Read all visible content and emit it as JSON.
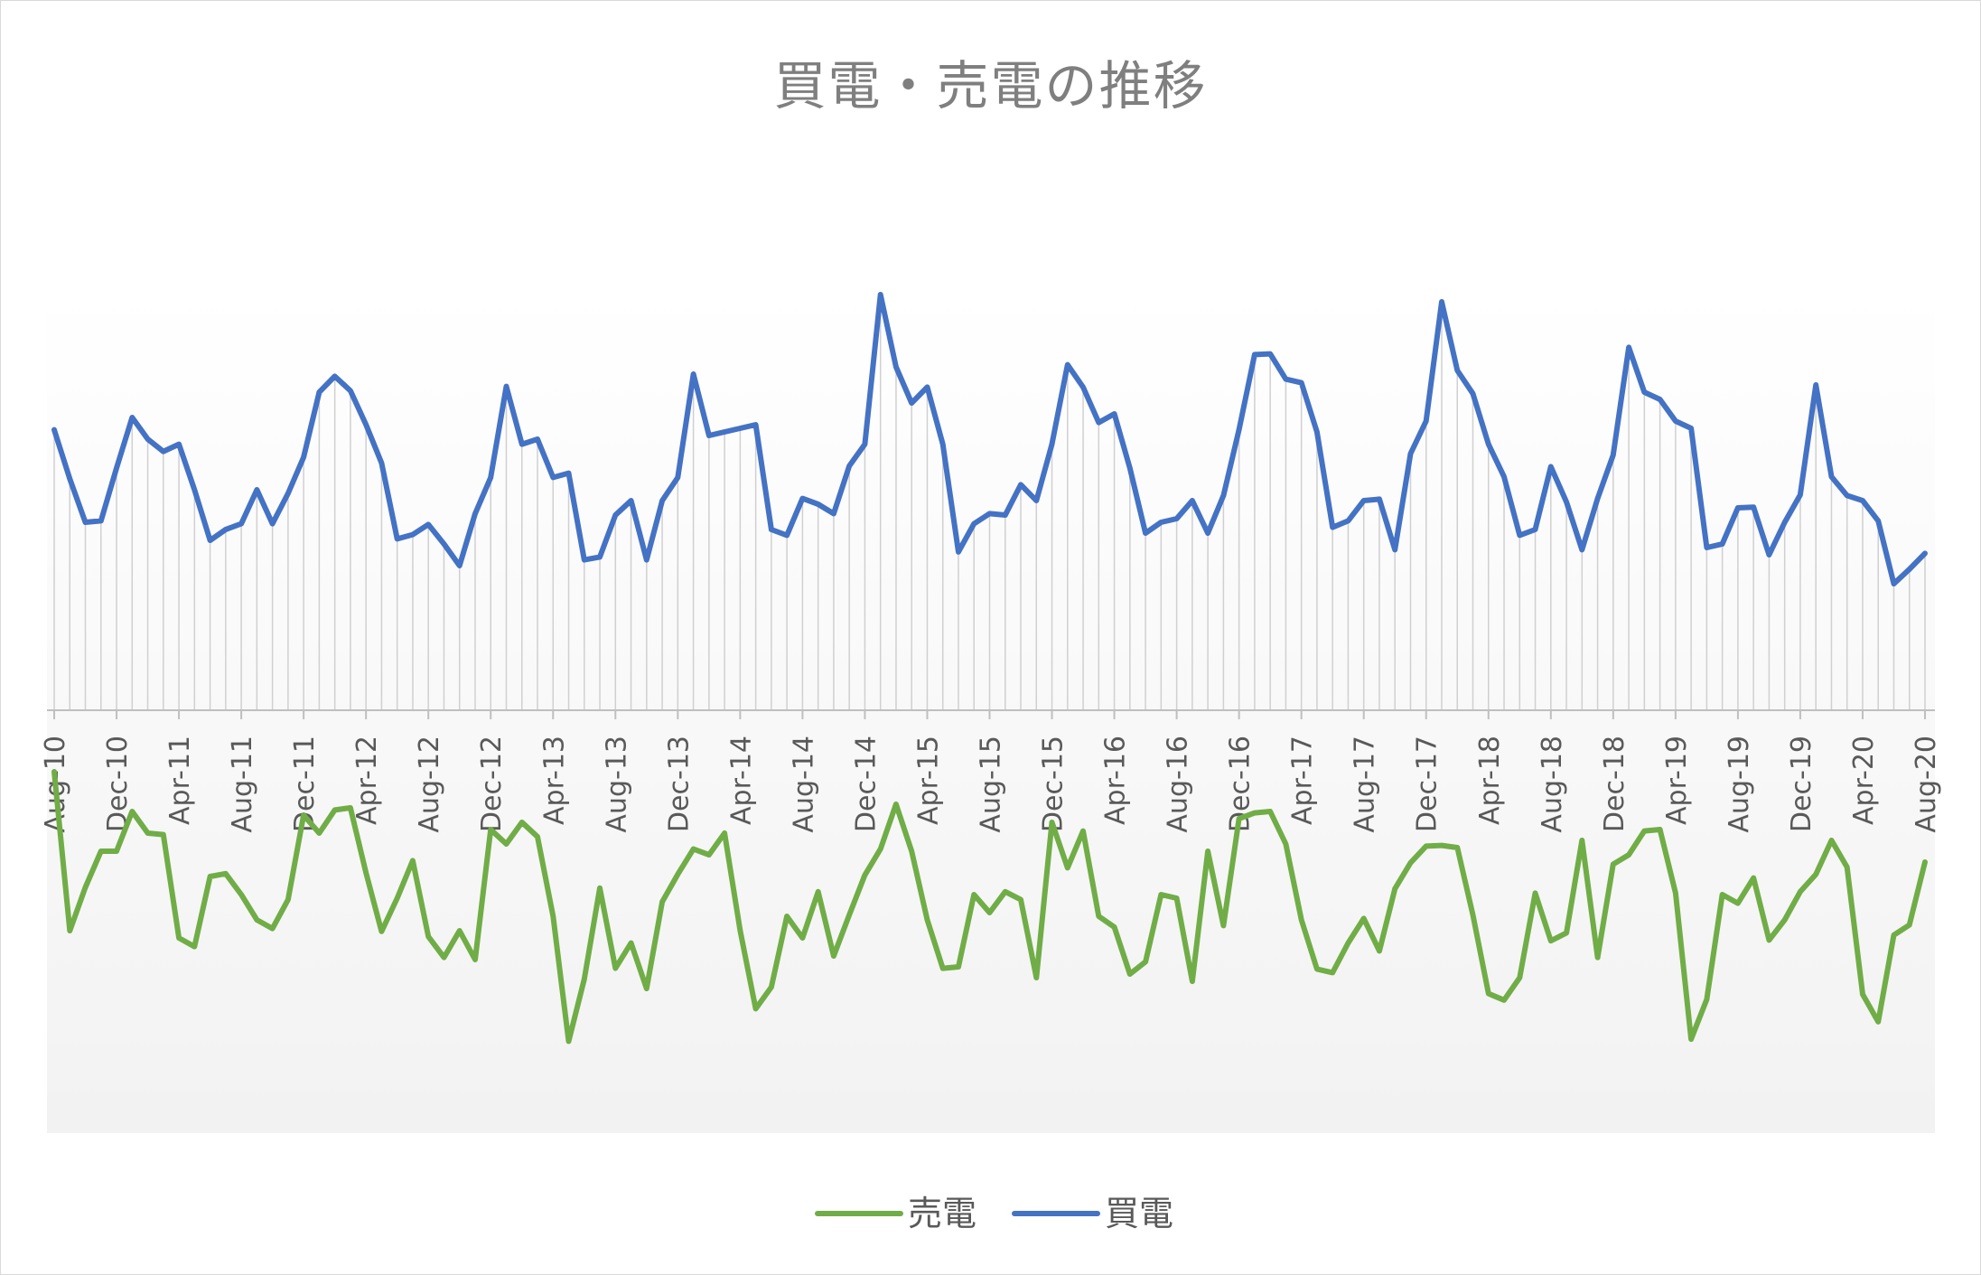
{
  "chart_data": {
    "type": "line",
    "title": "買電・売電の推移",
    "legend_position": "bottom",
    "x_start": "Aug-10",
    "x_end": "Aug-20",
    "frequency": "monthly",
    "tick_labels": [
      "Aug-10",
      "Dec-10",
      "Apr-11",
      "Aug-11",
      "Dec-11",
      "Apr-12",
      "Aug-12",
      "Dec-12",
      "Apr-13",
      "Aug-13",
      "Dec-13",
      "Apr-14",
      "Aug-14",
      "Dec-14",
      "Apr-15",
      "Aug-15",
      "Dec-15",
      "Apr-16",
      "Aug-16",
      "Dec-16",
      "Apr-17",
      "Aug-17",
      "Dec-17",
      "Apr-18",
      "Aug-18",
      "Dec-18",
      "Apr-19",
      "Aug-19",
      "Dec-19",
      "Apr-20",
      "Aug-20"
    ],
    "ylim": [
      -560,
      560
    ],
    "y_axis_labels_shown": false,
    "drop_lines": true,
    "series": [
      {
        "name": "売電",
        "color": "#70ad47",
        "values": [
          -85,
          -305,
          -245,
          -195,
          -195,
          -140,
          -170,
          -172,
          -315,
          -327,
          -230,
          -226,
          -255,
          -290,
          -302,
          -262,
          -145,
          -170,
          -138,
          -135,
          -225,
          -306,
          -260,
          -208,
          -313,
          -342,
          -305,
          -345,
          -165,
          -185,
          -155,
          -175,
          -285,
          -458,
          -372,
          -246,
          -357,
          -322,
          -385,
          -265,
          -227,
          -192,
          -200,
          -170,
          -305,
          -413,
          -383,
          -285,
          -315,
          -251,
          -340,
          -283,
          -228,
          -192,
          -130,
          -195,
          -290,
          -357,
          -355,
          -255,
          -280,
          -251,
          -262,
          -370,
          -155,
          -218,
          -167,
          -285,
          -300,
          -365,
          -348,
          -255,
          -260,
          -375,
          -195,
          -298,
          -150,
          -142,
          -140,
          -185,
          -290,
          -358,
          -363,
          -322,
          -288,
          -333,
          -247,
          -211,
          -188,
          -187,
          -190,
          -283,
          -392,
          -401,
          -370,
          -253,
          -319,
          -308,
          -180,
          -342,
          -213,
          -200,
          -167,
          -165,
          -253,
          -455,
          -400,
          -255,
          -267,
          -232,
          -318,
          -290,
          -251,
          -227,
          -180,
          -217,
          -393,
          -431,
          -311,
          -297,
          -210
        ]
      },
      {
        "name": "買電",
        "color": "#4472c4",
        "values": [
          388,
          320,
          260,
          262,
          335,
          405,
          375,
          358,
          368,
          305,
          235,
          250,
          258,
          305,
          258,
          300,
          350,
          440,
          462,
          442,
          395,
          342,
          237,
          243,
          257,
          230,
          200,
          272,
          322,
          448,
          368,
          375,
          322,
          328,
          208,
          212,
          270,
          290,
          208,
          290,
          322,
          465,
          380,
          385,
          390,
          395,
          250,
          242,
          293,
          285,
          272,
          338,
          368,
          575,
          475,
          425,
          447,
          368,
          219,
          258,
          272,
          270,
          312,
          290,
          368,
          478,
          447,
          398,
          410,
          335,
          245,
          260,
          265,
          290,
          245,
          297,
          388,
          492,
          493,
          458,
          453,
          385,
          253,
          262,
          290,
          292,
          222,
          355,
          400,
          565,
          470,
          438,
          368,
          323,
          242,
          250,
          337,
          288,
          222,
          293,
          353,
          502,
          440,
          430,
          400,
          390,
          225,
          230,
          280,
          281,
          215,
          260,
          298,
          450,
          323,
          297,
          290,
          262,
          175,
          195,
          217
        ]
      }
    ]
  }
}
